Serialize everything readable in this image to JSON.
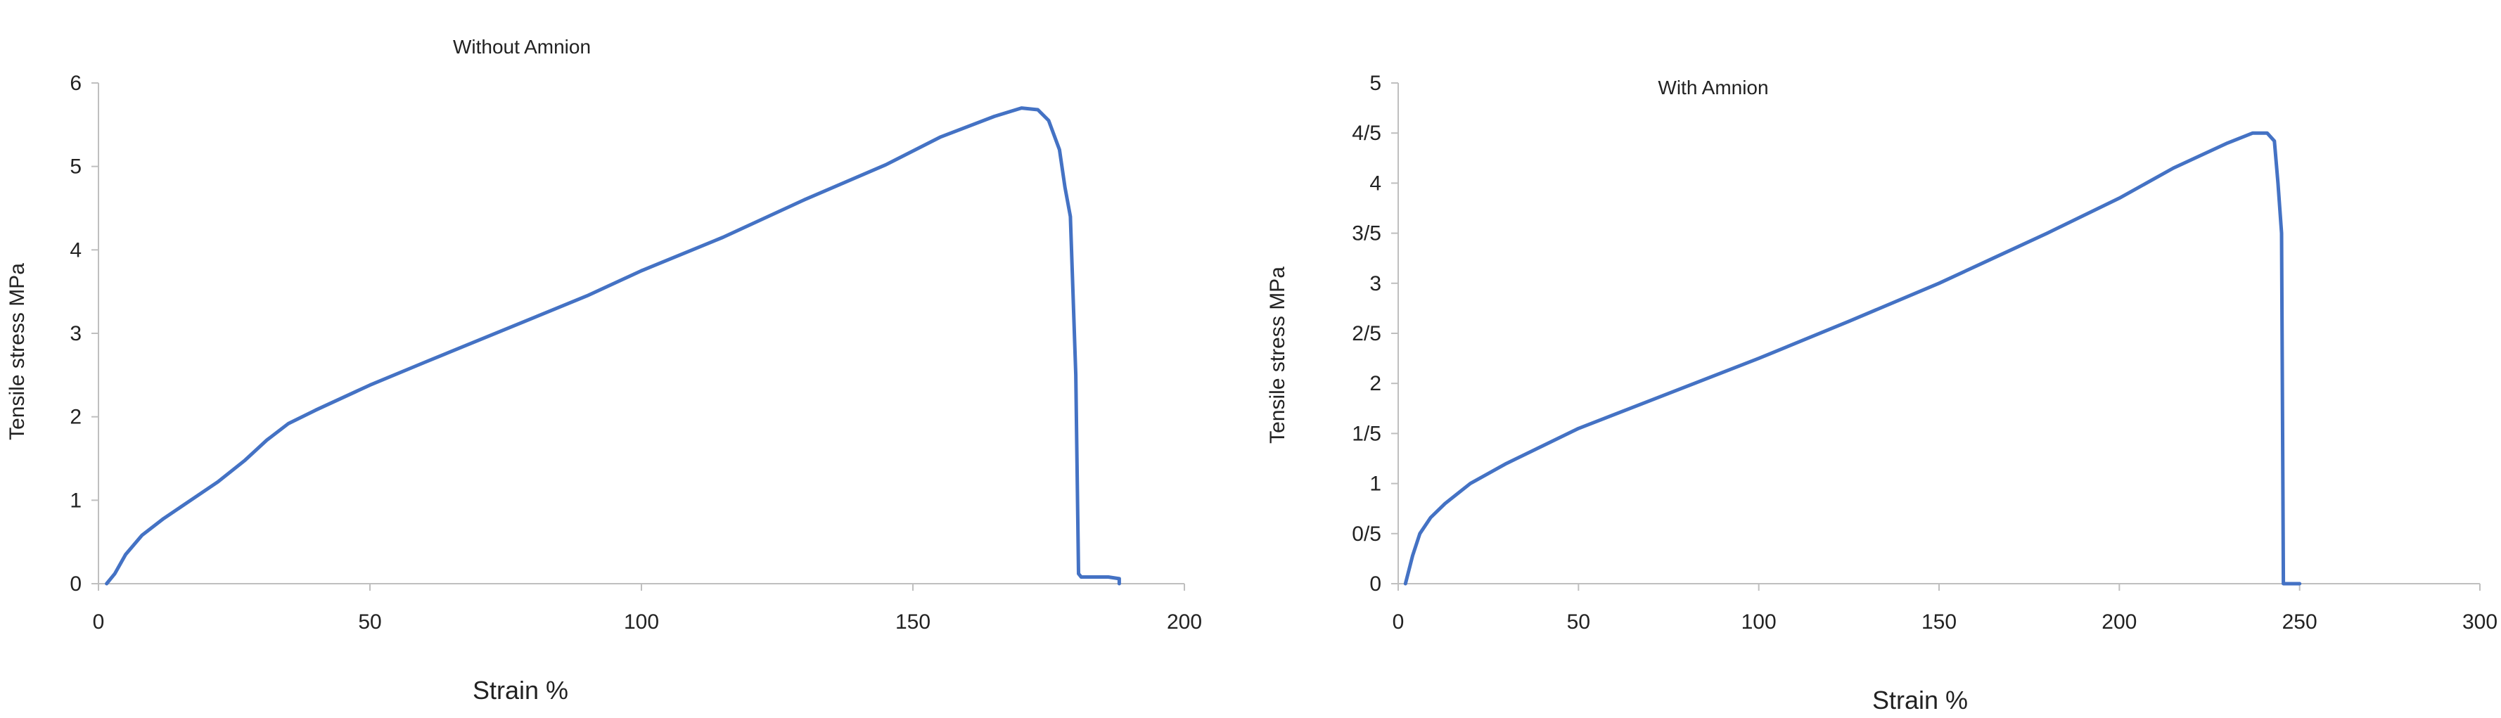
{
  "colors": {
    "series": "#4472c4",
    "axis": "#bfbfbf",
    "text": "#222222"
  },
  "chart_data": [
    {
      "type": "line",
      "title": "Without Amnion",
      "xlabel": "Strain %",
      "ylabel": "Tensile stress MPa",
      "xlim": [
        0,
        200
      ],
      "ylim": [
        0,
        6
      ],
      "grid": false,
      "x_ticks": [
        {
          "value": 0,
          "label": "0"
        },
        {
          "value": 50,
          "label": "50"
        },
        {
          "value": 100,
          "label": "100"
        },
        {
          "value": 150,
          "label": "150"
        },
        {
          "value": 200,
          "label": "200"
        }
      ],
      "y_ticks": [
        {
          "value": 0,
          "label": "0"
        },
        {
          "value": 1,
          "label": "1"
        },
        {
          "value": 2,
          "label": "2"
        },
        {
          "value": 3,
          "label": "3"
        },
        {
          "value": 4,
          "label": "4"
        },
        {
          "value": 5,
          "label": "5"
        },
        {
          "value": 6,
          "label": "6"
        }
      ],
      "series": [
        {
          "x": [
            1.5,
            3,
            5,
            8,
            12,
            17,
            22,
            27,
            31,
            35,
            40,
            50,
            60,
            75,
            90,
            100,
            115,
            130,
            145,
            155,
            165,
            170,
            173,
            175,
            177,
            178,
            179,
            180,
            180.5,
            181,
            181.5,
            183,
            186,
            188,
            188
          ],
          "y": [
            0,
            0.12,
            0.35,
            0.58,
            0.78,
            1.0,
            1.22,
            1.48,
            1.72,
            1.92,
            2.08,
            2.38,
            2.65,
            3.05,
            3.45,
            3.75,
            4.15,
            4.6,
            5.02,
            5.35,
            5.6,
            5.7,
            5.68,
            5.55,
            5.2,
            4.75,
            4.4,
            2.5,
            0.12,
            0.08,
            0.08,
            0.08,
            0.08,
            0.06,
            0
          ]
        }
      ]
    },
    {
      "type": "line",
      "title": "With Amnion",
      "xlabel": "Strain %",
      "ylabel": "Tensile stress MPa",
      "xlim": [
        0,
        300
      ],
      "ylim": [
        0,
        5
      ],
      "grid": false,
      "x_ticks": [
        {
          "value": 0,
          "label": "0"
        },
        {
          "value": 50,
          "label": "50"
        },
        {
          "value": 100,
          "label": "100"
        },
        {
          "value": 150,
          "label": "150"
        },
        {
          "value": 200,
          "label": "200"
        },
        {
          "value": 250,
          "label": "250"
        },
        {
          "value": 300,
          "label": "300"
        }
      ],
      "y_ticks": [
        {
          "value": 0,
          "label": "0"
        },
        {
          "value": 0.5,
          "label": "0/5"
        },
        {
          "value": 1,
          "label": "1"
        },
        {
          "value": 1.5,
          "label": "1/5"
        },
        {
          "value": 2,
          "label": "2"
        },
        {
          "value": 2.5,
          "label": "2/5"
        },
        {
          "value": 3,
          "label": "3"
        },
        {
          "value": 3.5,
          "label": "3/5"
        },
        {
          "value": 4,
          "label": "4"
        },
        {
          "value": 4.5,
          "label": "4/5"
        },
        {
          "value": 5,
          "label": "5"
        }
      ],
      "series": [
        {
          "x": [
            2,
            4,
            6,
            9,
            13,
            20,
            30,
            50,
            75,
            100,
            125,
            150,
            165,
            180,
            200,
            215,
            230,
            237,
            241,
            243,
            244,
            245,
            245.5,
            247,
            250
          ],
          "y": [
            0,
            0.28,
            0.5,
            0.66,
            0.8,
            1.0,
            1.2,
            1.55,
            1.9,
            2.25,
            2.62,
            3.0,
            3.25,
            3.5,
            3.85,
            4.15,
            4.4,
            4.5,
            4.5,
            4.42,
            4.0,
            3.5,
            0,
            0,
            0
          ]
        }
      ]
    }
  ]
}
